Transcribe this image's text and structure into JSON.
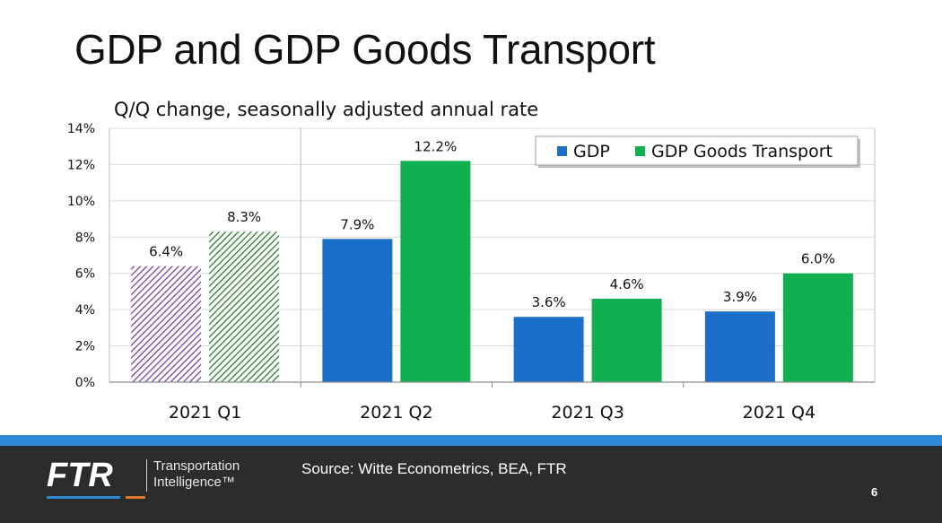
{
  "page": {
    "title": "GDP and GDP Goods Transport",
    "subtitle": "Q/Q change, seasonally adjusted annual rate"
  },
  "chart_data": {
    "type": "bar",
    "title": "GDP and GDP Goods Transport",
    "subtitle": "Q/Q change, seasonally adjusted annual rate",
    "categories": [
      "2021 Q1",
      "2021 Q2",
      "2021 Q3",
      "2021 Q4"
    ],
    "series": [
      {
        "name": "GDP",
        "color": "#1b6fc9",
        "values": [
          6.4,
          7.9,
          3.6,
          3.9
        ],
        "labels": [
          "6.4%",
          "7.9%",
          "3.6%",
          "3.9%"
        ]
      },
      {
        "name": "GDP Goods Transport",
        "color": "#10b050",
        "values": [
          8.3,
          12.2,
          4.6,
          6.0
        ],
        "labels": [
          "8.3%",
          "12.2%",
          "4.6%",
          "6.0%"
        ]
      }
    ],
    "hatched_categories": [
      "2021 Q1"
    ],
    "hatch_colors": [
      "#7a3fa3",
      "#2a7d2a"
    ],
    "ylim": [
      0,
      14
    ],
    "yticks": [
      0,
      2,
      4,
      6,
      8,
      10,
      12,
      14
    ],
    "ytick_labels": [
      "0%",
      "2%",
      "4%",
      "6%",
      "8%",
      "10%",
      "12%",
      "14%"
    ],
    "xlabel": "",
    "ylabel": "",
    "grid": true,
    "legend_position": "top-right"
  },
  "footer": {
    "logo_text": "FTR",
    "logo_sub_line1": "Transportation",
    "logo_sub_line2": "Intelligence™",
    "source": "Source: Witte Econometrics, BEA, FTR",
    "page_number": "6",
    "accent_colors": [
      "#2e8ad8",
      "#e07a2a",
      "#d24a3c",
      "#4caf50",
      "#2e8ad8"
    ]
  }
}
